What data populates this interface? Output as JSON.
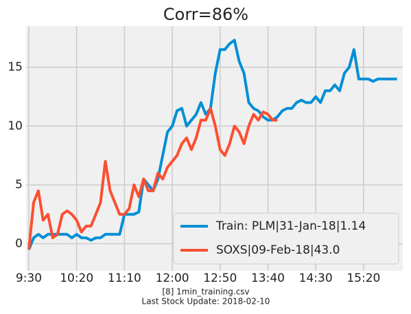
{
  "chart_data": {
    "type": "line",
    "title": "Corr=86%",
    "footnote": [
      "[8] 1min_training.csv",
      "Last Stock Update: 2018-02-10"
    ],
    "x": [
      570,
      575,
      580,
      585,
      590,
      595,
      600,
      605,
      610,
      615,
      620,
      625,
      630,
      635,
      640,
      645,
      650,
      655,
      660,
      665,
      670,
      675,
      680,
      685,
      690,
      695,
      700,
      705,
      710,
      715,
      720,
      725,
      730,
      735,
      740,
      745,
      750,
      755,
      760,
      765,
      770,
      775,
      780,
      785,
      790,
      795,
      800,
      805,
      810,
      815,
      820,
      825,
      830,
      835,
      840,
      845,
      850,
      855,
      860,
      865,
      870,
      875,
      880,
      885,
      890,
      895,
      900,
      905,
      910,
      915,
      920,
      925,
      930,
      935,
      940,
      945,
      950,
      955
    ],
    "series": [
      {
        "name": "Train: PLM|31-Jan-18|1.14",
        "color": "#008fd5",
        "values": [
          -0.5,
          0.5,
          0.8,
          0.5,
          0.8,
          0.8,
          0.8,
          0.8,
          0.8,
          0.5,
          0.8,
          0.5,
          0.5,
          0.3,
          0.5,
          0.5,
          0.8,
          0.8,
          0.8,
          0.8,
          2.5,
          2.5,
          2.5,
          2.7,
          5.5,
          5,
          4.5,
          5.5,
          7.5,
          9.5,
          10,
          11.3,
          11.5,
          10,
          10.5,
          11,
          12,
          11,
          11.5,
          14.5,
          16.5,
          16.5,
          17,
          17.3,
          15.5,
          14.5,
          12,
          11.5,
          11.3,
          10.8,
          10.5,
          10.5,
          10.8,
          11.3,
          11.5,
          11.5,
          12,
          12.2,
          12,
          12,
          12.5,
          12,
          13,
          13,
          13.5,
          13,
          14.5,
          15,
          16.5,
          14,
          14,
          14,
          13.8,
          14,
          14,
          14,
          14,
          14
        ]
      },
      {
        "name": "SOXS|09-Feb-18|43.0",
        "color": "#fc4f30",
        "values": [
          -0.5,
          3.5,
          4.5,
          2,
          2.5,
          0.5,
          0.8,
          2.5,
          2.8,
          2.5,
          2,
          1,
          1.5,
          1.5,
          2.5,
          3.5,
          7,
          4.5,
          3.5,
          2.5,
          2.5,
          3,
          5,
          4,
          5.5,
          4.5,
          4.5,
          6,
          5.5,
          6.5,
          7,
          7.5,
          8.5,
          9,
          8,
          9,
          10.5,
          10.5,
          11.5,
          10,
          8,
          7.5,
          8.5,
          10,
          9.5,
          8.5,
          10,
          11,
          10.5,
          11.2,
          11,
          10.5,
          10.5,
          null,
          null,
          null,
          null,
          null,
          null,
          null,
          null,
          null,
          null,
          null,
          null,
          null,
          null,
          null,
          null,
          null,
          null,
          null,
          null,
          null,
          null,
          null,
          null,
          null
        ]
      }
    ],
    "xlim": [
      570,
      961
    ],
    "xticks": [
      {
        "value": 570,
        "label": "9:30"
      },
      {
        "value": 620,
        "label": "10:20"
      },
      {
        "value": 670,
        "label": "11:10"
      },
      {
        "value": 720,
        "label": "12:00"
      },
      {
        "value": 770,
        "label": "12:50"
      },
      {
        "value": 820,
        "label": "13:40"
      },
      {
        "value": 870,
        "label": "14:30"
      },
      {
        "value": 920,
        "label": "15:20"
      }
    ],
    "ylim": [
      -2.3,
      18.5
    ],
    "yticks": [
      0,
      5,
      10,
      15
    ],
    "grid": true,
    "legend": "lower right"
  }
}
